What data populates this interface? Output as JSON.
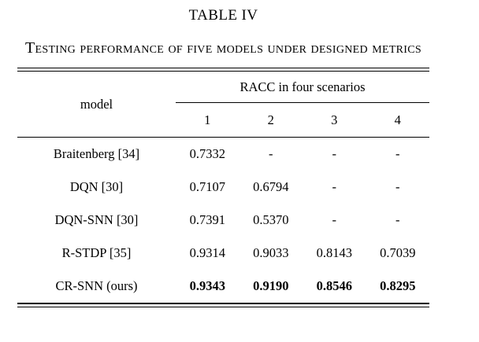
{
  "table_label": "TABLE IV",
  "caption": "Testing performance of five models under designed metrics",
  "header": {
    "model_col": "model",
    "span_label": "RACC in four scenarios",
    "scenario_cols": [
      "1",
      "2",
      "3",
      "4"
    ]
  },
  "rows": [
    {
      "model": "Braitenberg [34]",
      "values": [
        "0.7332",
        "-",
        "-",
        "-"
      ],
      "bold": false
    },
    {
      "model": "DQN [30]",
      "values": [
        "0.7107",
        "0.6794",
        "-",
        "-"
      ],
      "bold": false
    },
    {
      "model": "DQN-SNN [30]",
      "values": [
        "0.7391",
        "0.5370",
        "-",
        "-"
      ],
      "bold": false
    },
    {
      "model": "R-STDP [35]",
      "values": [
        "0.9314",
        "0.9033",
        "0.8143",
        "0.7039"
      ],
      "bold": false
    },
    {
      "model": "CR-SNN (ours)",
      "values": [
        "0.9343",
        "0.9190",
        "0.8546",
        "0.8295"
      ],
      "bold": true
    }
  ],
  "colors": {
    "text": "#000000",
    "background": "#ffffff",
    "rule": "#000000"
  }
}
